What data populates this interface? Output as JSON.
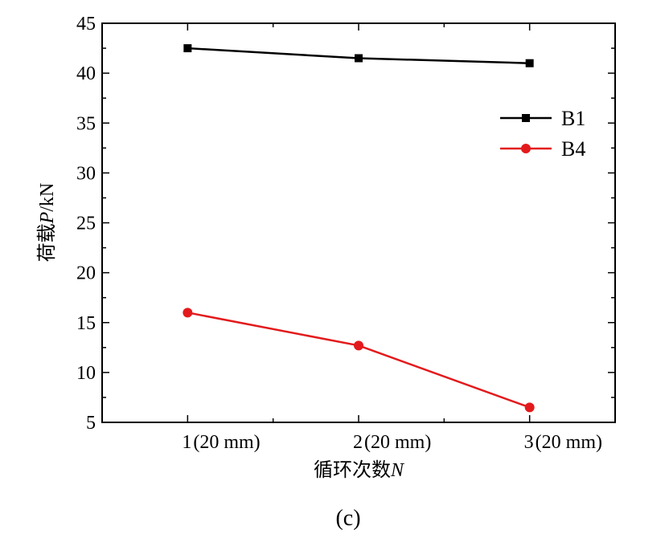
{
  "chart_data": {
    "type": "line",
    "categories": [
      "1",
      "2",
      "3"
    ],
    "x_tick_suffix": "(20 mm)",
    "x": [
      1,
      2,
      3
    ],
    "xlim": [
      0.5,
      3.5
    ],
    "ylim": [
      5,
      45
    ],
    "yticks": [
      5,
      10,
      15,
      20,
      25,
      30,
      35,
      40,
      45
    ],
    "xlabel": "循环次数",
    "xlabel_var": "N",
    "ylabel": "荷载",
    "ylabel_var": "P",
    "ylabel_unit": "/kN",
    "series": [
      {
        "name": "B1",
        "values": [
          42.5,
          41.5,
          41.0
        ],
        "color": "#000000",
        "marker": "square"
      },
      {
        "name": "B4",
        "values": [
          16.0,
          12.7,
          6.5
        ],
        "color": "#e31a1c",
        "marker": "circle"
      }
    ],
    "legend_position": "right-upper",
    "caption": "(c)"
  }
}
